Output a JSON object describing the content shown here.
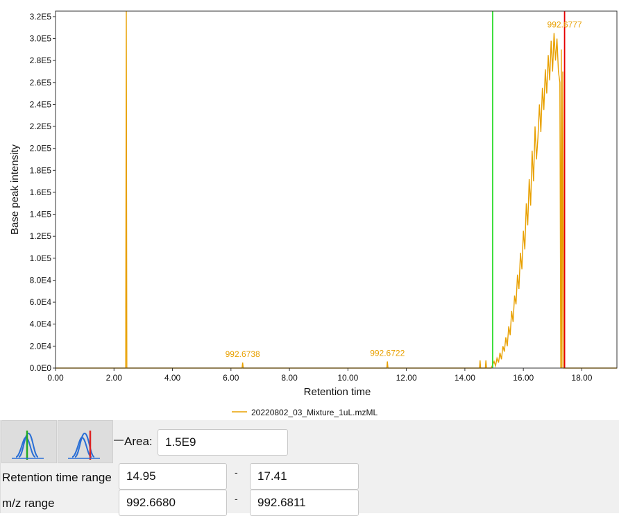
{
  "chart_data": {
    "type": "line",
    "xlabel": "Retention time",
    "ylabel": "Base peak intensity",
    "xlim": [
      0,
      19.2
    ],
    "ylim": [
      0,
      325000
    ],
    "x_ticks": [
      "0.00",
      "2.00",
      "4.00",
      "6.00",
      "8.00",
      "10.00",
      "12.00",
      "14.00",
      "16.00",
      "18.00"
    ],
    "x_tick_values": [
      0,
      2,
      4,
      6,
      8,
      10,
      12,
      14,
      16,
      18
    ],
    "y_ticks": [
      "0.0E0",
      "2.0E4",
      "4.0E4",
      "6.0E4",
      "8.0E4",
      "1.0E5",
      "1.2E5",
      "1.4E5",
      "1.6E5",
      "1.8E5",
      "2.0E5",
      "2.2E5",
      "2.4E5",
      "2.6E5",
      "2.8E5",
      "3.0E5",
      "3.2E5"
    ],
    "y_tick_values": [
      0,
      20000,
      40000,
      60000,
      80000,
      100000,
      120000,
      140000,
      160000,
      180000,
      200000,
      220000,
      240000,
      260000,
      280000,
      300000,
      320000
    ],
    "grid": false,
    "legend_position": "bottom-center",
    "series": [
      {
        "name": "20220802_03_Mixture_1uL.mzML",
        "color": "#e8a000",
        "points": [
          [
            0,
            0
          ],
          [
            2.4,
            0
          ],
          [
            2.42,
            325000
          ],
          [
            2.44,
            0
          ],
          [
            6.38,
            0
          ],
          [
            6.4,
            5000
          ],
          [
            6.42,
            0
          ],
          [
            11.33,
            0
          ],
          [
            11.35,
            6000
          ],
          [
            11.37,
            0
          ],
          [
            14.5,
            0
          ],
          [
            14.52,
            7000
          ],
          [
            14.54,
            0
          ],
          [
            14.7,
            0
          ],
          [
            14.72,
            7000
          ],
          [
            14.74,
            0
          ],
          [
            14.9,
            0
          ],
          [
            14.95,
            3000
          ],
          [
            15.0,
            6000
          ],
          [
            15.05,
            2000
          ],
          [
            15.1,
            9000
          ],
          [
            15.15,
            5000
          ],
          [
            15.2,
            14000
          ],
          [
            15.25,
            8000
          ],
          [
            15.3,
            20000
          ],
          [
            15.35,
            15000
          ],
          [
            15.4,
            28000
          ],
          [
            15.45,
            20000
          ],
          [
            15.5,
            38000
          ],
          [
            15.55,
            30000
          ],
          [
            15.6,
            52000
          ],
          [
            15.65,
            42000
          ],
          [
            15.7,
            66000
          ],
          [
            15.75,
            58000
          ],
          [
            15.8,
            85000
          ],
          [
            15.85,
            72000
          ],
          [
            15.9,
            105000
          ],
          [
            15.95,
            90000
          ],
          [
            16.0,
            125000
          ],
          [
            16.05,
            108000
          ],
          [
            16.1,
            150000
          ],
          [
            16.15,
            130000
          ],
          [
            16.2,
            172000
          ],
          [
            16.25,
            148000
          ],
          [
            16.3,
            198000
          ],
          [
            16.35,
            170000
          ],
          [
            16.4,
            220000
          ],
          [
            16.45,
            190000
          ],
          [
            16.5,
            210000
          ],
          [
            16.55,
            240000
          ],
          [
            16.6,
            215000
          ],
          [
            16.65,
            255000
          ],
          [
            16.7,
            235000
          ],
          [
            16.75,
            272000
          ],
          [
            16.8,
            250000
          ],
          [
            16.85,
            285000
          ],
          [
            16.9,
            262000
          ],
          [
            16.95,
            298000
          ],
          [
            17.0,
            270000
          ],
          [
            17.05,
            305000
          ],
          [
            17.1,
            280000
          ],
          [
            17.15,
            300000
          ],
          [
            17.2,
            270000
          ],
          [
            17.25,
            260000
          ],
          [
            17.28,
            0
          ],
          [
            17.3,
            290000
          ],
          [
            17.32,
            0
          ],
          [
            17.35,
            270000
          ],
          [
            17.38,
            0
          ],
          [
            19.2,
            0
          ]
        ]
      }
    ],
    "annotations": [
      {
        "label": "992.6738",
        "x": 6.4,
        "y": 5000
      },
      {
        "label": "992.6722",
        "x": 11.35,
        "y": 6000
      },
      {
        "label": "992.6777",
        "x": 17.41,
        "y": 305000
      }
    ],
    "markers": [
      {
        "name": "range-start",
        "x": 14.95,
        "color": "#33dd33"
      },
      {
        "name": "range-end",
        "x": 17.41,
        "color": "#e60000"
      }
    ]
  },
  "panel": {
    "area_label": "Area:",
    "area_value": "1.5E9",
    "rt_label": "Retention time range",
    "rt_min": "14.95",
    "rt_max": "17.41",
    "mz_label": "m/z range",
    "mz_min": "992.6680",
    "mz_max": "992.6811",
    "range_separator": "-",
    "btn_left_icon": "peak-green-left-boundary-icon",
    "btn_right_icon": "peak-red-right-boundary-icon"
  }
}
